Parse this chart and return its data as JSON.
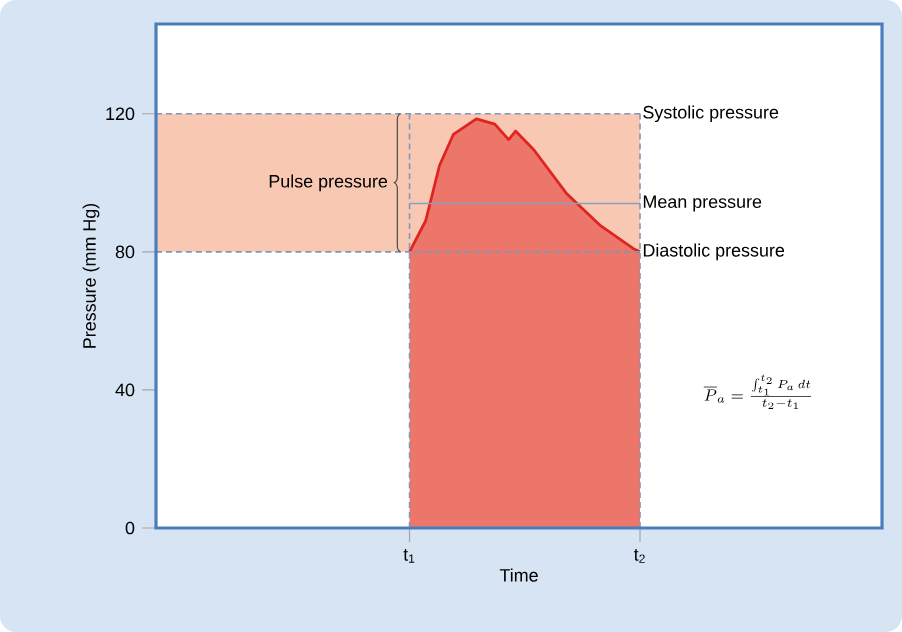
{
  "chart_data": {
    "type": "area",
    "xlabel": "Time",
    "ylabel": "Pressure (mm Hg)",
    "series": [
      {
        "x": [
          1,
          1.07,
          1.13,
          1.19,
          1.29,
          1.37,
          1.43,
          1.46,
          1.54,
          1.68,
          1.83,
          1.97,
          2
        ],
        "values": [
          80,
          89,
          105,
          114,
          118.5,
          117,
          112.5,
          115,
          109.5,
          97,
          87.5,
          81,
          80
        ],
        "color": "#e02420"
      }
    ],
    "xlim": [
      -0.1,
      3.05
    ],
    "ylim": [
      0,
      146
    ],
    "xticks": [
      {
        "value": 1,
        "label": "t$_{1}$"
      },
      {
        "value": 2,
        "label": "t$_{2}$"
      }
    ],
    "yticks": [
      0,
      40,
      80,
      120
    ],
    "bands": [
      {
        "axis": "y",
        "from": 80,
        "to": 120,
        "color": "#f9c8b3",
        "label": "Pulse pressure"
      }
    ],
    "ref_lines": [
      {
        "axis": "y",
        "value": 120,
        "label": "Systolic pressure",
        "color": "#7f97b8",
        "line_style": "dashed"
      },
      {
        "axis": "y",
        "value": 94,
        "label": "Mean pressure",
        "color": "#8aa0c0",
        "line_style": "solid"
      },
      {
        "axis": "y",
        "value": 80,
        "label": "Diastolic pressure",
        "color": "#7f97b8",
        "line_style": "dashed"
      },
      {
        "axis": "x",
        "value": 1,
        "color": "#7f97b8",
        "line_style": "dashed"
      },
      {
        "axis": "x",
        "value": 2,
        "color": "#7f97b8",
        "line_style": "dashed"
      }
    ],
    "annotations": [
      "\\overline{P}_a = \\frac{\\int_{t_1}^{t_2} P_a\\,dt}{t_2-t_1}"
    ],
    "grid": false,
    "marker": "none",
    "line_style": "solid"
  }
}
